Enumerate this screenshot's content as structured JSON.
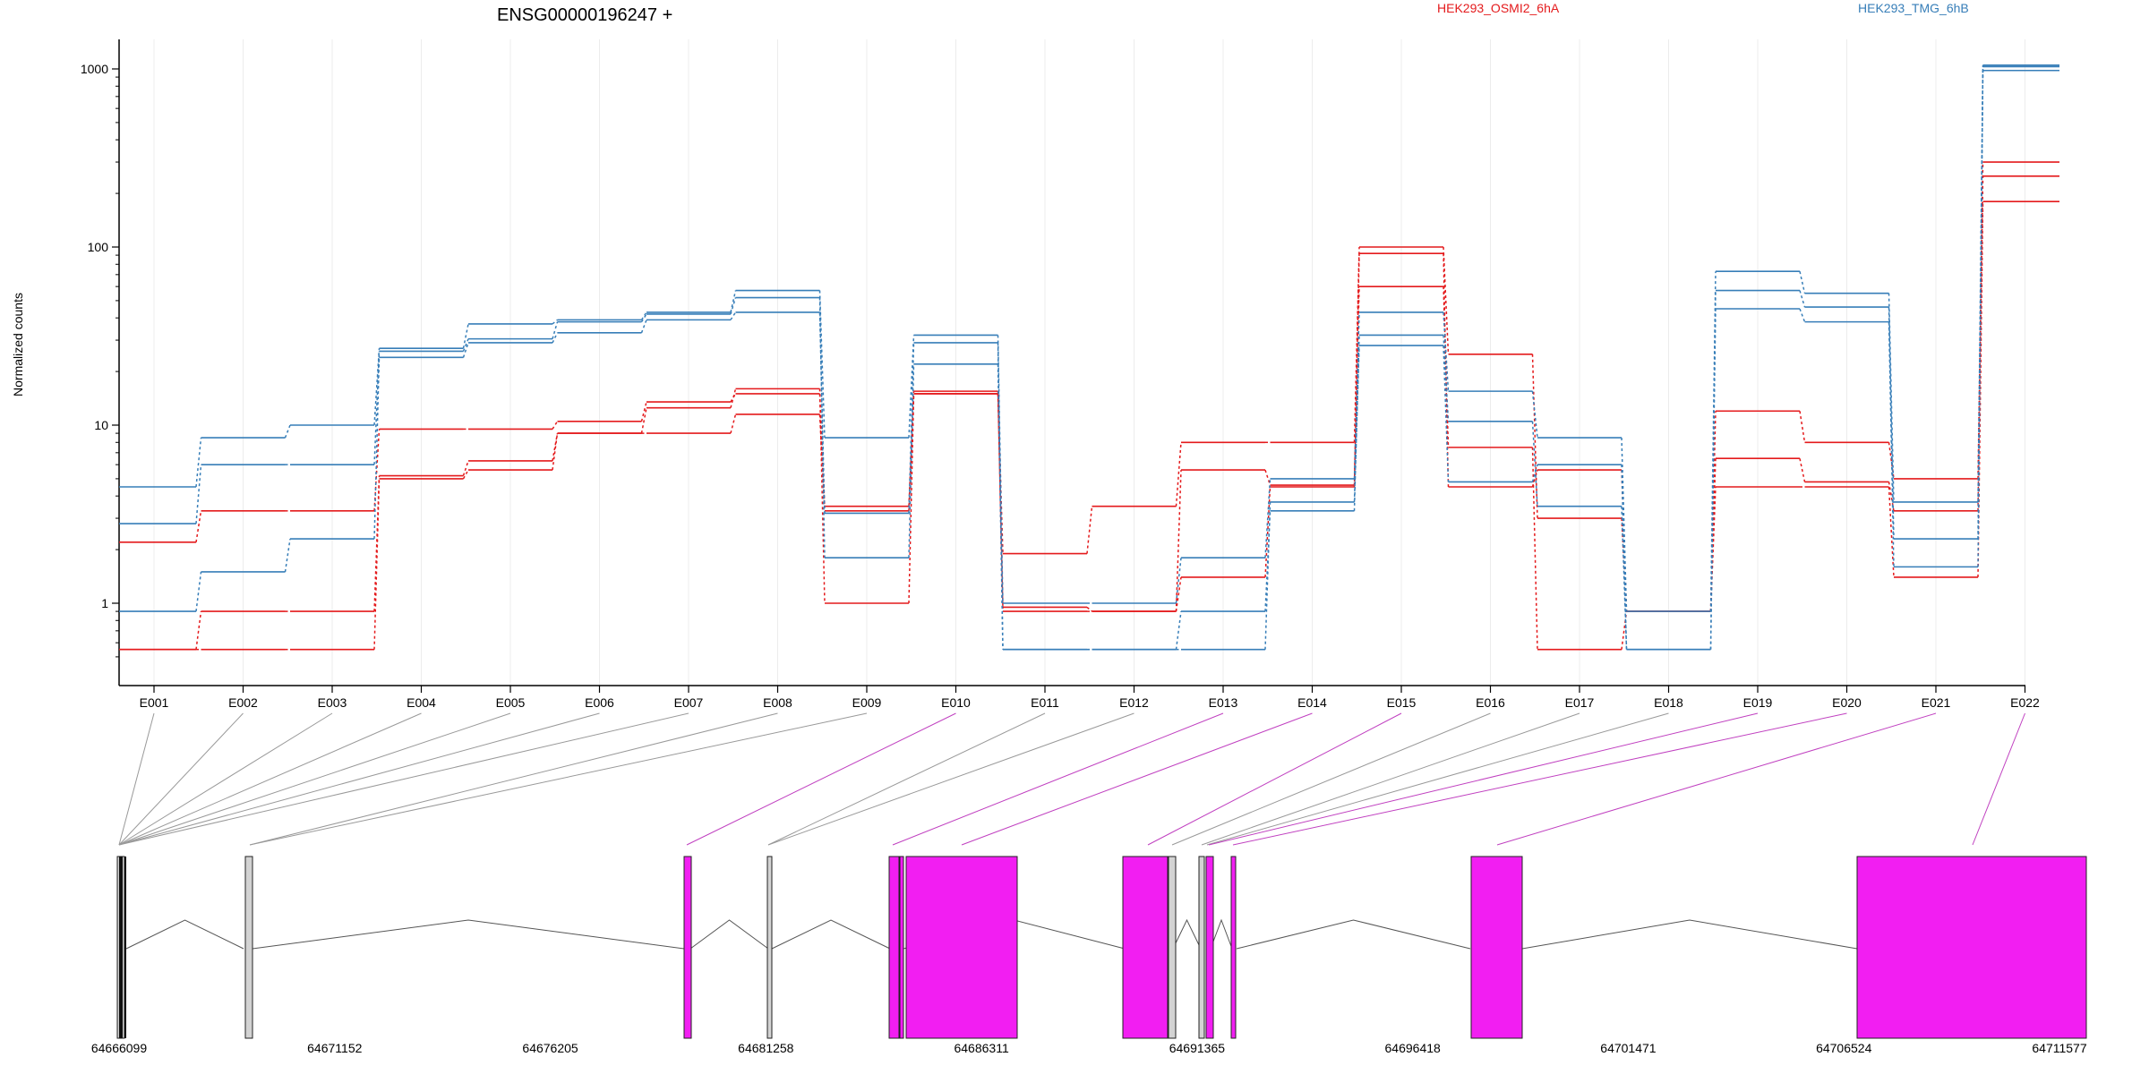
{
  "chart_data": {
    "type": "line",
    "title": "ENSG00000196247 +",
    "ylabel": "Normalized counts",
    "yscale": "log",
    "ylim": [
      0.5,
      1200
    ],
    "y_ticks": [
      "1",
      "10",
      "100",
      "1000"
    ],
    "grid": "vertical, light",
    "categories": [
      "E001",
      "E002",
      "E003",
      "E004",
      "E005",
      "E006",
      "E007",
      "E008",
      "E009",
      "E010",
      "E011",
      "E012",
      "E013",
      "E014",
      "E015",
      "E016",
      "E017",
      "E018",
      "E019",
      "E020",
      "E021",
      "E022"
    ],
    "legend": [
      {
        "label": "HEK293_OSMI2_6hA",
        "color": "#e41a1c"
      },
      {
        "label": "HEK293_TMG_6hB",
        "color": "#377eb8"
      }
    ],
    "series": [
      {
        "group": 0,
        "values": [
          2.2,
          3.3,
          3.3,
          9.5,
          9.5,
          10.5,
          13.5,
          15,
          3.5,
          15,
          1.9,
          3.5,
          8,
          8,
          100,
          25,
          3,
          0.9,
          12,
          8,
          5,
          300
        ]
      },
      {
        "group": 0,
        "values": [
          0.55,
          0.9,
          0.9,
          5.2,
          6.3,
          9,
          9,
          11.5,
          3.3,
          15.5,
          0.9,
          0.9,
          5.6,
          4.6,
          60,
          7.5,
          0.55,
          0.9,
          6.5,
          4.8,
          3.3,
          250
        ]
      },
      {
        "group": 0,
        "values": [
          0.55,
          0.55,
          0.55,
          5,
          5.6,
          9,
          12.5,
          16,
          1,
          15,
          0.95,
          0.9,
          1.4,
          4.5,
          92,
          4.5,
          5.6,
          0.9,
          4.5,
          4.5,
          1.4,
          180
        ]
      },
      {
        "group": 1,
        "values": [
          4.5,
          8.5,
          10,
          27,
          37,
          39,
          43,
          57,
          8.5,
          32,
          1,
          1,
          1.8,
          5,
          43,
          15.5,
          8.5,
          0.9,
          73,
          55,
          3.7,
          1050
        ]
      },
      {
        "group": 1,
        "values": [
          2.8,
          6,
          6,
          26,
          30.5,
          38,
          42,
          52,
          1.8,
          22,
          0.55,
          0.55,
          0.9,
          3.3,
          32,
          10.5,
          3.5,
          0.55,
          57,
          46,
          2.3,
          1030
        ]
      },
      {
        "group": 1,
        "values": [
          0.9,
          1.5,
          2.3,
          24,
          29,
          33,
          39,
          43,
          3.2,
          29,
          0.55,
          0.55,
          0.55,
          3.7,
          28,
          4.8,
          6,
          0.55,
          45,
          38,
          1.6,
          980
        ]
      }
    ],
    "gene_model": {
      "coord_ticks": [
        "64666099",
        "64671152",
        "64676205",
        "64681258",
        "64686311",
        "64691365",
        "64696418",
        "64701471",
        "64706524",
        "64711577"
      ],
      "highlight_color": "#f21ef2",
      "exon_color": "#d3d3d3"
    }
  }
}
